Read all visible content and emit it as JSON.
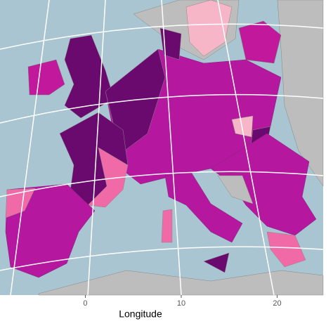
{
  "map": {
    "type": "choropleth",
    "xlabel": "Longitude",
    "xticks": [
      0,
      10,
      20
    ],
    "xlim": [
      -8.9,
      24.8
    ]
  }
}
